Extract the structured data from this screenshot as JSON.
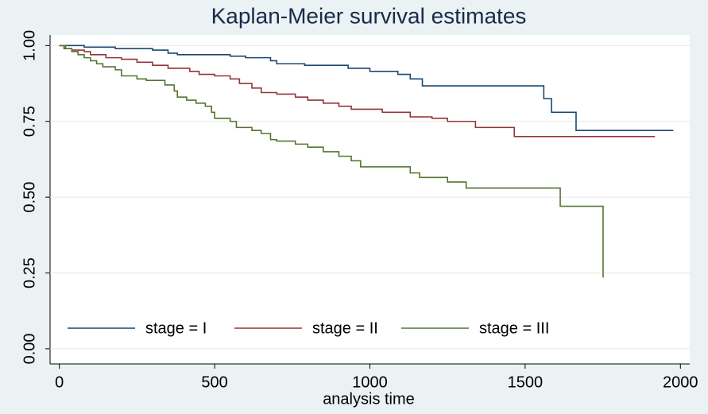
{
  "chart_data": {
    "type": "step",
    "title": "Kaplan-Meier survival estimates",
    "x_label": "analysis time",
    "xlim": [
      -30,
      2030
    ],
    "ylim": [
      -0.05,
      1.035
    ],
    "xticks": [
      0,
      500,
      1000,
      1500,
      2000
    ],
    "yticks": [
      {
        "value": 0,
        "label": "0.00"
      },
      {
        "value": 0.25,
        "label": "0.25"
      },
      {
        "value": 0.5,
        "label": "0.50"
      },
      {
        "value": 0.75,
        "label": "0.75"
      },
      {
        "value": 1,
        "label": "1.00"
      }
    ],
    "grid": true,
    "legend": "bottom",
    "series": [
      {
        "name": "stage = I",
        "color": "#1a476f",
        "x": [
          0,
          80,
          180,
          300,
          350,
          380,
          550,
          600,
          680,
          700,
          790,
          930,
          1000,
          1090,
          1130,
          1169,
          1560,
          1585,
          1664,
          1977
        ],
        "values": [
          1,
          0.995,
          0.99,
          0.985,
          0.975,
          0.97,
          0.965,
          0.96,
          0.95,
          0.94,
          0.935,
          0.925,
          0.915,
          0.905,
          0.89,
          0.867,
          0.825,
          0.78,
          0.72,
          0.72
        ]
      },
      {
        "name": "stage = II",
        "color": "#90353b",
        "x": [
          0,
          15,
          40,
          80,
          100,
          150,
          200,
          250,
          300,
          350,
          420,
          450,
          500,
          550,
          580,
          620,
          650,
          700,
          760,
          800,
          850,
          900,
          940,
          1040,
          1130,
          1200,
          1250,
          1340,
          1465,
          1918
        ],
        "values": [
          1,
          0.99,
          0.985,
          0.98,
          0.97,
          0.96,
          0.955,
          0.945,
          0.935,
          0.925,
          0.915,
          0.905,
          0.9,
          0.89,
          0.875,
          0.86,
          0.845,
          0.84,
          0.83,
          0.82,
          0.81,
          0.8,
          0.79,
          0.78,
          0.765,
          0.76,
          0.75,
          0.73,
          0.7,
          0.7
        ]
      },
      {
        "name": "stage = III",
        "color": "#55752f",
        "x": [
          0,
          20,
          40,
          60,
          80,
          100,
          120,
          140,
          180,
          200,
          250,
          280,
          340,
          370,
          380,
          410,
          440,
          470,
          490,
          500,
          550,
          570,
          620,
          650,
          680,
          700,
          760,
          800,
          850,
          900,
          940,
          970,
          1130,
          1160,
          1250,
          1310,
          1613,
          1751
        ],
        "values": [
          1,
          0.99,
          0.98,
          0.97,
          0.96,
          0.95,
          0.94,
          0.93,
          0.92,
          0.9,
          0.89,
          0.885,
          0.87,
          0.85,
          0.83,
          0.82,
          0.81,
          0.8,
          0.78,
          0.76,
          0.75,
          0.73,
          0.72,
          0.71,
          0.69,
          0.685,
          0.675,
          0.665,
          0.65,
          0.635,
          0.62,
          0.6,
          0.58,
          0.565,
          0.55,
          0.53,
          0.47,
          0.235
        ]
      }
    ]
  }
}
